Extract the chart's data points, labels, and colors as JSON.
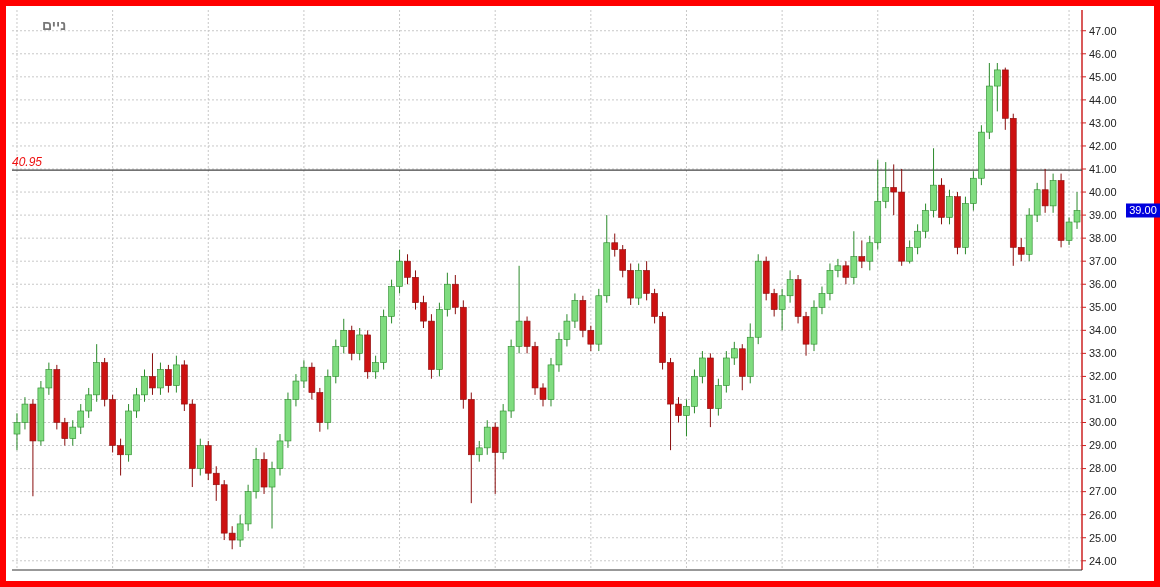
{
  "chart_data": {
    "type": "candlestick",
    "title": "ניים",
    "categories": [
      null,
      null,
      null,
      null,
      null,
      null,
      null,
      null,
      null,
      null,
      null,
      null,
      null,
      null,
      null,
      null,
      null,
      null,
      null,
      null,
      null,
      null,
      null,
      null,
      null,
      null,
      null,
      null,
      null,
      null,
      null,
      null,
      null,
      null,
      null,
      null,
      null,
      null,
      null,
      null,
      null,
      null,
      null,
      null,
      null,
      null,
      null,
      null,
      null,
      null,
      null,
      null,
      null,
      null,
      null,
      null,
      null,
      null,
      null,
      null,
      null,
      null,
      null,
      null,
      null,
      null,
      null,
      null,
      null,
      null,
      null,
      null,
      null,
      null,
      null,
      null,
      null,
      null,
      null,
      null,
      null,
      null,
      null,
      null,
      null,
      null,
      null,
      null,
      null,
      null,
      null,
      null,
      null,
      null,
      null,
      null,
      null,
      null,
      null,
      null,
      null,
      null,
      null,
      null,
      null,
      null,
      null,
      null,
      null,
      null,
      null,
      null,
      null,
      null,
      null,
      null,
      null,
      null,
      null,
      null,
      null,
      null,
      null,
      null,
      null,
      null,
      null,
      null,
      null,
      null,
      null,
      null,
      null,
      null
    ],
    "ohlc": [
      [
        29.5,
        30.4,
        28.8,
        30.0
      ],
      [
        30.0,
        31.1,
        29.7,
        30.8
      ],
      [
        30.8,
        31.0,
        26.8,
        29.2
      ],
      [
        29.2,
        31.8,
        29.0,
        31.5
      ],
      [
        31.5,
        32.6,
        31.2,
        32.3
      ],
      [
        32.3,
        32.5,
        29.7,
        30.0
      ],
      [
        30.0,
        30.2,
        29.0,
        29.3
      ],
      [
        29.3,
        30.1,
        29.0,
        29.8
      ],
      [
        29.8,
        30.8,
        29.5,
        30.5
      ],
      [
        30.5,
        31.5,
        30.2,
        31.2
      ],
      [
        31.2,
        33.4,
        30.9,
        32.6
      ],
      [
        32.6,
        32.8,
        30.7,
        31.0
      ],
      [
        31.0,
        31.2,
        28.7,
        29.0
      ],
      [
        29.0,
        29.3,
        27.7,
        28.6
      ],
      [
        28.6,
        30.8,
        28.3,
        30.5
      ],
      [
        30.5,
        31.5,
        30.2,
        31.2
      ],
      [
        31.2,
        32.3,
        30.9,
        32.0
      ],
      [
        32.0,
        33.0,
        31.2,
        31.5
      ],
      [
        31.5,
        32.6,
        31.2,
        32.3
      ],
      [
        32.3,
        32.5,
        31.3,
        31.6
      ],
      [
        31.6,
        32.9,
        31.3,
        32.5
      ],
      [
        32.5,
        32.7,
        30.5,
        30.8
      ],
      [
        30.8,
        31.0,
        27.2,
        28.0
      ],
      [
        28.0,
        29.3,
        27.7,
        29.0
      ],
      [
        29.0,
        29.2,
        27.5,
        27.8
      ],
      [
        27.8,
        28.1,
        26.6,
        27.3
      ],
      [
        27.3,
        27.5,
        24.9,
        25.2
      ],
      [
        25.2,
        25.5,
        24.5,
        24.9
      ],
      [
        24.9,
        26.0,
        24.6,
        25.6
      ],
      [
        25.6,
        27.3,
        25.3,
        27.0
      ],
      [
        27.0,
        28.9,
        26.7,
        28.4
      ],
      [
        28.4,
        28.7,
        26.9,
        27.2
      ],
      [
        27.2,
        28.3,
        25.4,
        28.0
      ],
      [
        28.0,
        29.5,
        27.7,
        29.2
      ],
      [
        29.2,
        31.3,
        28.9,
        31.0
      ],
      [
        31.0,
        32.1,
        30.7,
        31.8
      ],
      [
        31.8,
        32.7,
        31.5,
        32.4
      ],
      [
        32.4,
        32.6,
        31.0,
        31.3
      ],
      [
        31.3,
        31.5,
        29.6,
        30.0
      ],
      [
        30.0,
        32.3,
        29.7,
        32.0
      ],
      [
        32.0,
        33.6,
        31.7,
        33.3
      ],
      [
        33.3,
        34.5,
        33.0,
        34.0
      ],
      [
        34.0,
        34.2,
        32.7,
        33.0
      ],
      [
        33.0,
        34.1,
        32.7,
        33.8
      ],
      [
        33.8,
        34.0,
        31.9,
        32.2
      ],
      [
        32.2,
        32.9,
        31.9,
        32.6
      ],
      [
        32.6,
        34.9,
        32.3,
        34.6
      ],
      [
        34.6,
        36.2,
        34.3,
        35.9
      ],
      [
        35.9,
        37.5,
        35.6,
        37.0
      ],
      [
        37.0,
        37.3,
        36.0,
        36.3
      ],
      [
        36.3,
        36.6,
        34.9,
        35.2
      ],
      [
        35.2,
        35.5,
        34.1,
        34.4
      ],
      [
        34.4,
        34.7,
        31.9,
        32.3
      ],
      [
        32.3,
        35.2,
        32.0,
        34.9
      ],
      [
        34.9,
        36.5,
        34.6,
        36.0
      ],
      [
        36.0,
        36.4,
        34.7,
        35.0
      ],
      [
        35.0,
        35.3,
        30.6,
        31.0
      ],
      [
        31.0,
        31.3,
        26.5,
        28.6
      ],
      [
        28.6,
        29.2,
        28.3,
        28.9
      ],
      [
        28.9,
        30.1,
        28.6,
        29.8
      ],
      [
        29.8,
        30.0,
        26.9,
        28.7
      ],
      [
        28.7,
        30.8,
        28.4,
        30.5
      ],
      [
        30.5,
        33.6,
        30.2,
        33.3
      ],
      [
        33.3,
        36.8,
        33.0,
        34.4
      ],
      [
        34.4,
        34.6,
        33.0,
        33.3
      ],
      [
        33.3,
        33.5,
        31.2,
        31.5
      ],
      [
        31.5,
        31.7,
        30.7,
        31.0
      ],
      [
        31.0,
        32.8,
        30.7,
        32.5
      ],
      [
        32.5,
        33.9,
        32.2,
        33.6
      ],
      [
        33.6,
        34.7,
        33.3,
        34.4
      ],
      [
        34.4,
        35.6,
        34.1,
        35.3
      ],
      [
        35.3,
        35.5,
        33.7,
        34.0
      ],
      [
        34.0,
        34.2,
        33.1,
        33.4
      ],
      [
        33.4,
        35.8,
        33.1,
        35.5
      ],
      [
        35.5,
        39.0,
        35.2,
        37.8
      ],
      [
        37.8,
        38.2,
        37.2,
        37.5
      ],
      [
        37.5,
        37.7,
        36.3,
        36.6
      ],
      [
        36.6,
        36.9,
        35.1,
        35.4
      ],
      [
        35.4,
        36.9,
        35.1,
        36.6
      ],
      [
        36.6,
        37.0,
        35.3,
        35.6
      ],
      [
        35.6,
        35.8,
        34.3,
        34.6
      ],
      [
        34.6,
        34.8,
        32.3,
        32.6
      ],
      [
        32.6,
        32.8,
        28.8,
        30.8
      ],
      [
        30.8,
        31.1,
        30.0,
        30.3
      ],
      [
        30.3,
        31.0,
        29.4,
        30.7
      ],
      [
        30.7,
        32.3,
        30.4,
        32.0
      ],
      [
        32.0,
        33.1,
        31.7,
        32.8
      ],
      [
        32.8,
        33.0,
        29.8,
        30.6
      ],
      [
        30.6,
        31.9,
        30.3,
        31.6
      ],
      [
        31.6,
        33.1,
        31.3,
        32.8
      ],
      [
        32.8,
        33.5,
        32.5,
        33.2
      ],
      [
        33.2,
        33.4,
        31.4,
        32.0
      ],
      [
        32.0,
        34.3,
        31.7,
        33.7
      ],
      [
        33.7,
        37.3,
        33.4,
        37.0
      ],
      [
        37.0,
        37.2,
        35.3,
        35.6
      ],
      [
        35.6,
        35.8,
        34.6,
        34.9
      ],
      [
        34.9,
        35.8,
        34.0,
        35.5
      ],
      [
        35.5,
        36.6,
        35.2,
        36.2
      ],
      [
        36.2,
        36.4,
        34.3,
        34.6
      ],
      [
        34.6,
        34.8,
        32.9,
        33.4
      ],
      [
        33.4,
        35.3,
        33.1,
        35.0
      ],
      [
        35.0,
        35.9,
        34.7,
        35.6
      ],
      [
        35.6,
        36.9,
        35.3,
        36.6
      ],
      [
        36.6,
        37.1,
        36.3,
        36.8
      ],
      [
        36.8,
        37.0,
        36.0,
        36.3
      ],
      [
        36.3,
        38.3,
        36.0,
        37.2
      ],
      [
        37.2,
        37.9,
        36.7,
        37.0
      ],
      [
        37.0,
        38.1,
        36.6,
        37.8
      ],
      [
        37.8,
        41.4,
        37.5,
        39.6
      ],
      [
        39.6,
        41.3,
        39.3,
        40.2
      ],
      [
        40.2,
        41.2,
        39.0,
        40.0
      ],
      [
        40.0,
        41.0,
        36.8,
        37.0
      ],
      [
        37.0,
        37.9,
        36.9,
        37.6
      ],
      [
        37.6,
        38.6,
        37.3,
        38.3
      ],
      [
        38.3,
        39.5,
        38.0,
        39.2
      ],
      [
        39.2,
        41.9,
        38.9,
        40.3
      ],
      [
        40.3,
        40.6,
        38.6,
        38.9
      ],
      [
        38.9,
        40.1,
        38.6,
        39.8
      ],
      [
        39.8,
        40.0,
        37.3,
        37.6
      ],
      [
        37.6,
        39.8,
        37.3,
        39.5
      ],
      [
        39.5,
        40.9,
        39.2,
        40.6
      ],
      [
        40.6,
        42.9,
        40.3,
        42.6
      ],
      [
        42.6,
        45.6,
        42.3,
        44.6
      ],
      [
        44.6,
        45.6,
        43.5,
        45.3
      ],
      [
        45.3,
        45.4,
        42.7,
        43.2
      ],
      [
        43.2,
        43.4,
        36.8,
        37.6
      ],
      [
        37.6,
        38.0,
        37.0,
        37.3
      ],
      [
        37.3,
        39.3,
        37.0,
        39.0
      ],
      [
        39.0,
        40.4,
        38.7,
        40.1
      ],
      [
        40.1,
        41.0,
        39.1,
        39.4
      ],
      [
        39.4,
        40.8,
        39.1,
        40.5
      ],
      [
        40.5,
        40.8,
        37.6,
        37.9
      ],
      [
        37.9,
        38.9,
        37.7,
        38.7
      ],
      [
        38.7,
        40.0,
        38.4,
        39.2
      ]
    ],
    "ylim": [
      23.6,
      47.9
    ],
    "yticks": [
      {
        "value": 24,
        "label": "24.00"
      },
      {
        "value": 25,
        "label": "25.00"
      },
      {
        "value": 26,
        "label": "26.00"
      },
      {
        "value": 27,
        "label": "27.00"
      },
      {
        "value": 28,
        "label": "28.00"
      },
      {
        "value": 29,
        "label": "29.00"
      },
      {
        "value": 30,
        "label": "30.00"
      },
      {
        "value": 31,
        "label": "31.00"
      },
      {
        "value": 32,
        "label": "32.00"
      },
      {
        "value": 33,
        "label": "33.00"
      },
      {
        "value": 34,
        "label": "34.00"
      },
      {
        "value": 35,
        "label": "35.00"
      },
      {
        "value": 36,
        "label": "36.00"
      },
      {
        "value": 37,
        "label": "37.00"
      },
      {
        "value": 38,
        "label": "38.00"
      },
      {
        "value": 39,
        "label": "39.00"
      },
      {
        "value": 40,
        "label": "40.00"
      },
      {
        "value": 41,
        "label": "41.00"
      },
      {
        "value": 42,
        "label": "42.00"
      },
      {
        "value": 43,
        "label": "43.00"
      },
      {
        "value": 44,
        "label": "44.00"
      },
      {
        "value": 45,
        "label": "45.00"
      },
      {
        "value": 46,
        "label": "46.00"
      },
      {
        "value": 47,
        "label": "47.00"
      }
    ],
    "ref_lines": [
      {
        "axis": "y",
        "value": 40.95,
        "label": "40.95",
        "color": "#444444"
      }
    ],
    "annotations": [
      "39.00"
    ],
    "grid": true,
    "tick_labels": "y"
  }
}
